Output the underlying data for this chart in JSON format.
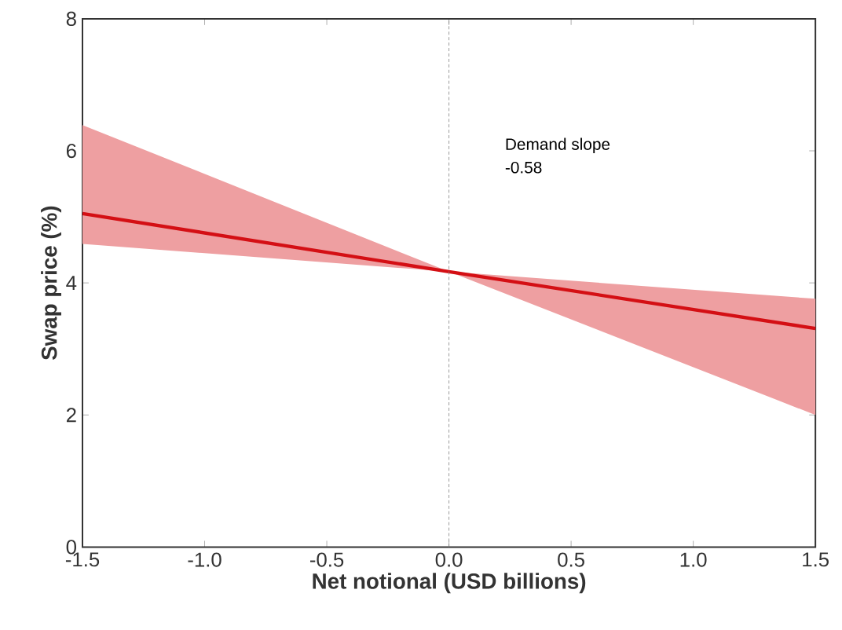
{
  "chart_data": {
    "type": "line",
    "xlabel": "Net notional (USD billions)",
    "ylabel": "Swap price (%)",
    "annotations": [
      "Demand slope",
      "-0.58"
    ],
    "x": [
      -1.5,
      0,
      1.5
    ],
    "series": [
      {
        "color": "#d40f14",
        "values": [
          5.05,
          4.17,
          3.31
        ],
        "lower": [
          4.59,
          4.17,
          2.0
        ],
        "upper": [
          6.39,
          4.17,
          3.76
        ]
      }
    ],
    "xlim": [
      -1.5,
      1.5
    ],
    "xticks": [
      {
        "value": -1.5,
        "label": "-1.5"
      },
      {
        "value": -1.0,
        "label": "-1.0"
      },
      {
        "value": -0.5,
        "label": "-0.5"
      },
      {
        "value": 0,
        "label": "0.0"
      },
      {
        "value": 0.5,
        "label": "0.5"
      },
      {
        "value": 1.0,
        "label": "1.0"
      },
      {
        "value": 1.5,
        "label": "1.5"
      }
    ],
    "ylim": [
      0,
      8
    ],
    "yticks": [
      0,
      2,
      4,
      6,
      8
    ],
    "ref_lines": [
      {
        "axis": "x",
        "value": 0,
        "color": "#808080",
        "line_style": "dashed"
      }
    ],
    "marker": "none",
    "line_style": "solid"
  }
}
